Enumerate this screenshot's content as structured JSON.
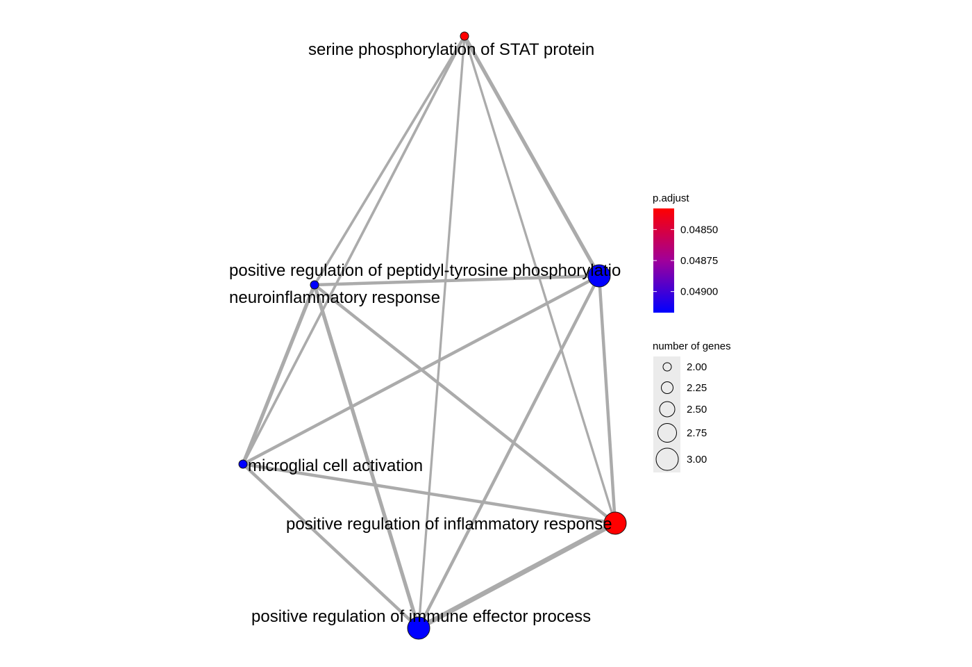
{
  "network": {
    "nodes": [
      {
        "id": "stat",
        "label": "serine phosphorylation of STAT protein",
        "count": 2,
        "p_adjust": 0.04833
      },
      {
        "id": "tyr",
        "label": "positive regulation of peptidyl-tyrosine phosphorylation",
        "label_visible": "positive regulation of peptidyl-tyrosine phosphorylatio",
        "count": 3,
        "p_adjust": 0.04917
      },
      {
        "id": "neuro",
        "label": "neuroinflammatory response",
        "count": 2,
        "p_adjust": 0.04917
      },
      {
        "id": "micro",
        "label": "microglial cell activation",
        "count": 2,
        "p_adjust": 0.04917
      },
      {
        "id": "inflam",
        "label": "positive regulation of inflammatory response",
        "count": 3,
        "p_adjust": 0.04833
      },
      {
        "id": "immune",
        "label": "positive regulation of immune effector process",
        "count": 3,
        "p_adjust": 0.04917
      }
    ],
    "edges": [
      {
        "source": "stat",
        "target": "neuro",
        "weight": 0.33
      },
      {
        "source": "stat",
        "target": "micro",
        "weight": 0.33
      },
      {
        "source": "stat",
        "target": "immune",
        "weight": 0.25
      },
      {
        "source": "stat",
        "target": "inflam",
        "weight": 0.25
      },
      {
        "source": "stat",
        "target": "tyr",
        "weight": 0.67
      },
      {
        "source": "neuro",
        "target": "tyr",
        "weight": 0.5
      },
      {
        "source": "neuro",
        "target": "micro",
        "weight": 0.67
      },
      {
        "source": "neuro",
        "target": "immune",
        "weight": 0.67
      },
      {
        "source": "neuro",
        "target": "inflam",
        "weight": 0.5
      },
      {
        "source": "tyr",
        "target": "micro",
        "weight": 0.5
      },
      {
        "source": "tyr",
        "target": "immune",
        "weight": 0.5
      },
      {
        "source": "tyr",
        "target": "inflam",
        "weight": 0.5
      },
      {
        "source": "micro",
        "target": "inflam",
        "weight": 0.5
      },
      {
        "source": "micro",
        "target": "immune",
        "weight": 0.5
      },
      {
        "source": "inflam",
        "target": "immune",
        "weight": 1.0
      }
    ]
  },
  "legend": {
    "color": {
      "title": "p.adjust",
      "low_color": "#ff0000",
      "high_color": "#0000ff",
      "range": [
        0.04833,
        0.04917
      ],
      "ticks": [
        {
          "value": 0.0485,
          "label": "0.04850"
        },
        {
          "value": 0.04875,
          "label": "0.04875"
        },
        {
          "value": 0.049,
          "label": "0.04900"
        }
      ]
    },
    "size": {
      "title": "number of genes",
      "entries": [
        {
          "value": 2.0,
          "label": "2.00"
        },
        {
          "value": 2.25,
          "label": "2.25"
        },
        {
          "value": 2.5,
          "label": "2.50"
        },
        {
          "value": 2.75,
          "label": "2.75"
        },
        {
          "value": 3.0,
          "label": "3.00"
        }
      ]
    }
  },
  "colors": {
    "edge": "#ababab",
    "node_outline": "#111111",
    "legend_key_bg": "#ebebeb"
  }
}
